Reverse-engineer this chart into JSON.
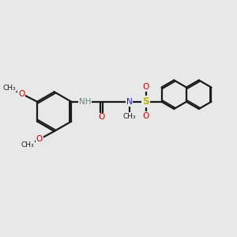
{
  "background_color": "#e8e8e8",
  "bond_color": "#1a1a1a",
  "N_color": "#2020cc",
  "O_color": "#cc0000",
  "S_color": "#b8b800",
  "NH_color": "#5a8a8a",
  "figsize": [
    3.0,
    3.0
  ],
  "dpi": 100,
  "xlim": [
    0,
    10
  ],
  "ylim": [
    0,
    10
  ]
}
